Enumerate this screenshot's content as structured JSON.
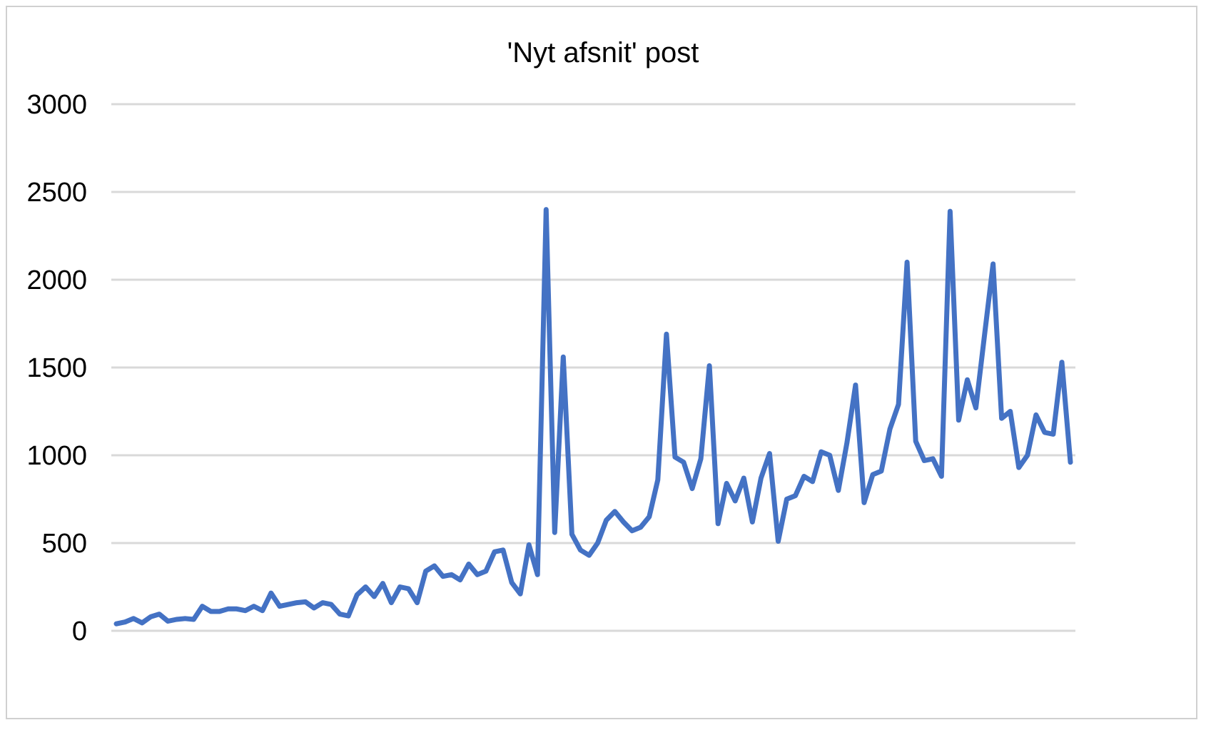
{
  "chart_data": {
    "type": "line",
    "title": "'Nyt afsnit' post",
    "xlabel": "",
    "ylabel": "",
    "ylim": [
      0,
      3000
    ],
    "yticks": [
      "0",
      "500",
      "1000",
      "1500",
      "2000",
      "2500",
      "3000"
    ],
    "grid": true,
    "legend": "none",
    "series": [
      {
        "color": "#4472C4",
        "values": [
          40,
          50,
          70,
          45,
          80,
          95,
          55,
          65,
          70,
          65,
          140,
          110,
          110,
          125,
          125,
          115,
          140,
          115,
          215,
          140,
          150,
          160,
          165,
          130,
          160,
          150,
          95,
          85,
          205,
          250,
          195,
          270,
          160,
          250,
          240,
          160,
          340,
          370,
          310,
          320,
          290,
          380,
          320,
          340,
          450,
          460,
          275,
          210,
          490,
          320,
          2400,
          560,
          1560,
          550,
          460,
          430,
          500,
          630,
          680,
          620,
          570,
          590,
          650,
          860,
          1690,
          990,
          960,
          810,
          980,
          1510,
          610,
          840,
          740,
          870,
          620,
          870,
          1010,
          510,
          750,
          770,
          880,
          850,
          1020,
          1000,
          800,
          1070,
          1400,
          730,
          890,
          910,
          1150,
          1290,
          2100,
          1080,
          970,
          980,
          880,
          2390,
          1200,
          1430,
          1270,
          1680,
          2090,
          1210,
          1250,
          930,
          1000,
          1230,
          1130,
          1120,
          1530,
          960
        ]
      }
    ]
  }
}
